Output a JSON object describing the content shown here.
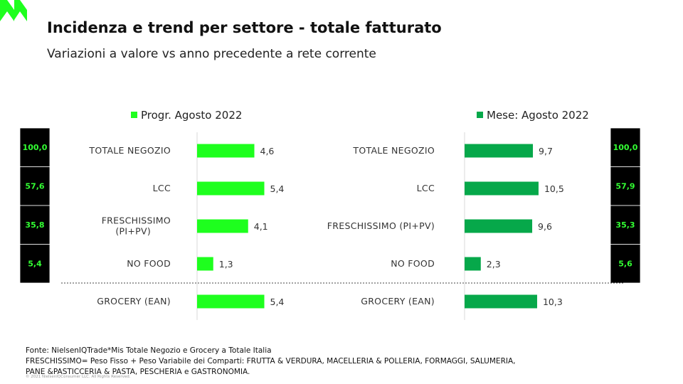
{
  "header": {
    "title": "Incidenza e trend per settore - totale fatturato",
    "subtitle": "Variazioni a valore vs anno precedente a rete corrente"
  },
  "colors": {
    "left_series": "#1eff1e",
    "right_series": "#06a84a",
    "box_background": "#000000",
    "box_text": "#33ff33"
  },
  "chart_data": [
    {
      "type": "bar",
      "orientation": "horizontal",
      "legend": "Progr. Agosto 2022",
      "legend_position": "top",
      "categories": [
        "TOTALE NEGOZIO",
        "LCC",
        "FRESCHISSIMO\n(PI+PV)",
        "NO FOOD",
        "GROCERY (EAN)"
      ],
      "series": [
        {
          "name": "Progr. Agosto 2022",
          "values": [
            4.6,
            5.4,
            4.1,
            1.3,
            5.4
          ],
          "labels": [
            "4,6",
            "5,4",
            "4,1",
            "1,3",
            "5,4"
          ]
        }
      ],
      "xlim": [
        0,
        12
      ],
      "incidenza": [
        "100,0",
        "57,6",
        "35,8",
        "5,4"
      ]
    },
    {
      "type": "bar",
      "orientation": "horizontal",
      "legend": "Mese: Agosto 2022",
      "legend_position": "top",
      "categories": [
        "TOTALE NEGOZIO",
        "LCC",
        "FRESCHISSIMO (PI+PV)",
        "NO FOOD",
        "GROCERY (EAN)"
      ],
      "series": [
        {
          "name": "Mese: Agosto 2022",
          "values": [
            9.7,
            10.5,
            9.6,
            2.3,
            10.3
          ],
          "labels": [
            "9,7",
            "10,5",
            "9,6",
            "2,3",
            "10,3"
          ]
        }
      ],
      "xlim": [
        0,
        14.6
      ],
      "incidenza": [
        "100,0",
        "57,9",
        "35,3",
        "5,6"
      ]
    }
  ],
  "footnote": {
    "source": "Fonte: NielsenIQTrade*Mis Totale Negozio  e  Grocery a Totale Italia",
    "line2": "FRESCHISSIMO= Peso Fisso + Peso Variabile dei Comparti: FRUTTA & VERDURA, MACELLERIA & POLLERIA, FORMAGGI, SALUMERIA,",
    "line3": "PANE &PASTICCERIA & PASTA, PESCHERIA e GASTRONOMIA."
  },
  "copyright": "© 2021 NielsenIQConsumer LLC. All Rights Reserved."
}
